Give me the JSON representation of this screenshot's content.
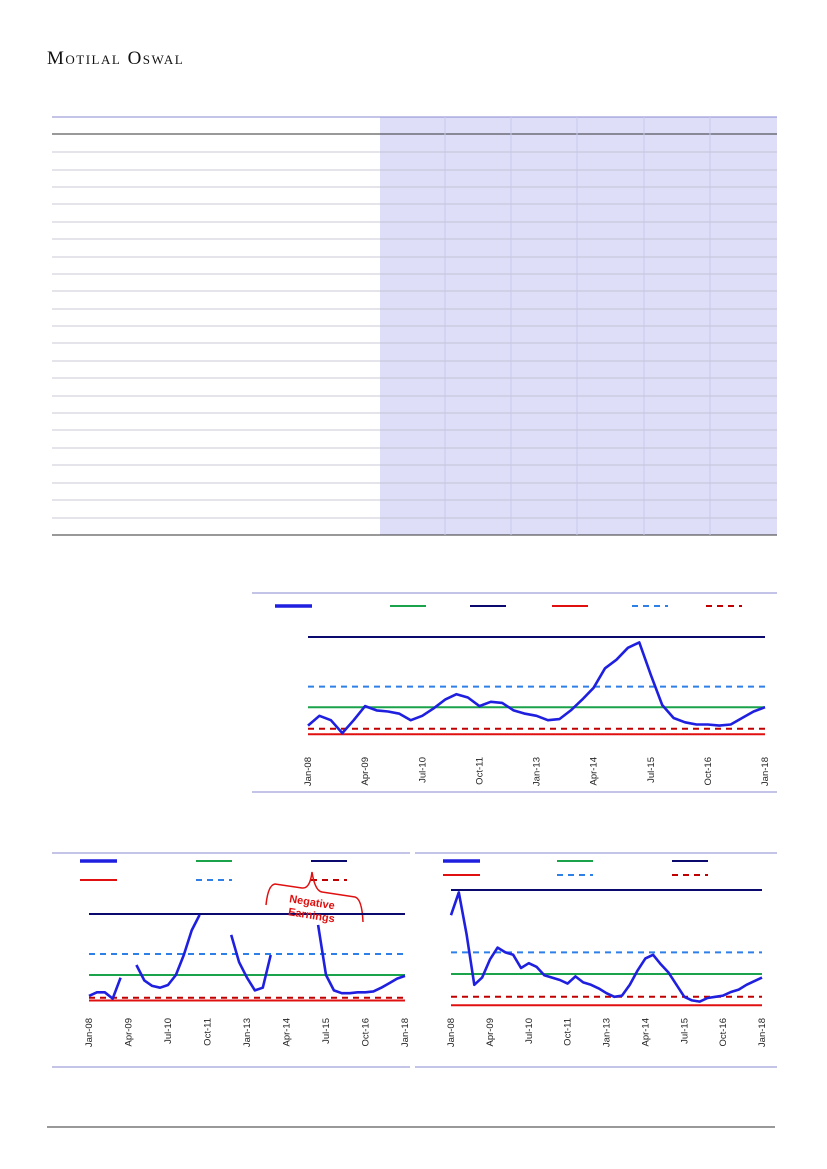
{
  "header": {
    "brand": "Motilal Oswal"
  },
  "chart_data": [
    {
      "type": "line",
      "x": [
        "Jan-08",
        "Apr-08",
        "Jul-08",
        "Oct-08",
        "Jan-09",
        "Apr-09",
        "Jul-09",
        "Oct-09",
        "Jan-10",
        "Apr-10",
        "Jul-10",
        "Oct-10",
        "Jan-11",
        "Apr-11",
        "Jul-11",
        "Oct-11",
        "Jan-12",
        "Apr-12",
        "Jul-12",
        "Oct-12",
        "Jan-13",
        "Apr-13",
        "Jul-13",
        "Oct-13",
        "Jan-14",
        "Apr-14",
        "Jul-14",
        "Oct-14",
        "Jan-15",
        "Apr-15",
        "Jul-15",
        "Oct-15",
        "Jan-16",
        "Apr-16",
        "Jul-16",
        "Oct-16",
        "Jan-17",
        "Apr-17",
        "Jul-17",
        "Oct-17",
        "Jan-18"
      ],
      "xticks": [
        "Jan-08",
        "Apr-09",
        "Jul-10",
        "Oct-11",
        "Jan-13",
        "Apr-14",
        "Jul-15",
        "Oct-16",
        "Jan-18"
      ],
      "ylim": [
        0,
        100
      ],
      "series": [
        {
          "color": "#1f1fe0",
          "values": [
            18,
            27,
            23,
            11,
            23,
            36,
            32,
            31,
            29,
            23,
            27,
            34,
            42,
            47,
            44,
            36,
            40,
            39,
            32,
            29,
            27,
            23,
            24,
            32,
            42,
            53,
            71,
            79,
            90,
            95,
            65,
            37,
            25,
            21,
            19,
            19,
            18,
            19,
            25,
            31,
            35
          ]
        }
      ],
      "ref_lines": [
        {
          "value": 100,
          "color": "#0a0a6e",
          "dash": false
        },
        {
          "value": 54,
          "color": "#2e7fe6",
          "dash": true
        },
        {
          "value": 35,
          "color": "#1aa34a",
          "dash": false
        },
        {
          "value": 15,
          "color": "#c00000",
          "dash": true
        },
        {
          "value": 10,
          "color": "#e01010",
          "dash": false
        }
      ]
    },
    {
      "type": "line",
      "x": [
        "Jan-08",
        "Apr-08",
        "Jul-08",
        "Oct-08",
        "Jan-09",
        "Apr-09",
        "Jul-09",
        "Oct-09",
        "Jan-10",
        "Apr-10",
        "Jul-10",
        "Oct-10",
        "Jan-11",
        "Apr-11",
        "Jul-11",
        "Oct-11",
        "Jan-12",
        "Apr-12",
        "Jul-12",
        "Oct-12",
        "Jan-13",
        "Apr-13",
        "Jul-13",
        "Oct-13",
        "Jan-14",
        "Apr-14",
        "Jul-14",
        "Oct-14",
        "Jan-15",
        "Apr-15",
        "Jul-15",
        "Oct-15",
        "Jan-16",
        "Apr-16",
        "Jul-16",
        "Oct-16",
        "Jan-17",
        "Apr-17",
        "Jul-17",
        "Oct-17",
        "Jan-18"
      ],
      "xticks": [
        "Jan-08",
        "Apr-09",
        "Jul-10",
        "Oct-11",
        "Jan-13",
        "Apr-14",
        "Jul-15",
        "Oct-16",
        "Jan-18"
      ],
      "ylim": [
        0,
        100
      ],
      "series": [
        {
          "color": "#1f1fe0",
          "values": [
            10,
            14,
            14,
            7,
            30,
            null,
            44,
            27,
            21,
            19,
            22,
            33,
            55,
            82,
            99,
            null,
            null,
            null,
            77,
            47,
            30,
            16,
            19,
            55,
            null,
            null,
            null,
            null,
            null,
            88,
            33,
            16,
            13,
            13,
            14,
            14,
            15,
            19,
            24,
            29,
            32
          ]
        }
      ],
      "ref_lines": [
        {
          "value": 100,
          "color": "#0a0a6e",
          "dash": false
        },
        {
          "value": 56,
          "color": "#2e7fe6",
          "dash": true
        },
        {
          "value": 33,
          "color": "#1aa34a",
          "dash": false
        },
        {
          "value": 8,
          "color": "#c00000",
          "dash": true
        },
        {
          "value": 5,
          "color": "#e01010",
          "dash": false
        }
      ],
      "annotation": "Negative Earnings"
    },
    {
      "type": "line",
      "x": [
        "Jan-08",
        "Apr-08",
        "Jul-08",
        "Oct-08",
        "Jan-09",
        "Apr-09",
        "Jul-09",
        "Oct-09",
        "Jan-10",
        "Apr-10",
        "Jul-10",
        "Oct-10",
        "Jan-11",
        "Apr-11",
        "Jul-11",
        "Oct-11",
        "Jan-12",
        "Apr-12",
        "Jul-12",
        "Oct-12",
        "Jan-13",
        "Apr-13",
        "Jul-13",
        "Oct-13",
        "Jan-14",
        "Apr-14",
        "Jul-14",
        "Oct-14",
        "Jan-15",
        "Apr-15",
        "Jul-15",
        "Oct-15",
        "Jan-16",
        "Apr-16",
        "Jul-16",
        "Oct-16",
        "Jan-17",
        "Apr-17",
        "Jul-17",
        "Oct-17",
        "Jan-18"
      ],
      "xticks": [
        "Jan-08",
        "Apr-09",
        "Jul-10",
        "Oct-11",
        "Jan-13",
        "Apr-14",
        "Jul-15",
        "Oct-16",
        "Jan-18"
      ],
      "ylim": [
        0,
        100
      ],
      "series": [
        {
          "color": "#1f1fe0",
          "values": [
            79,
            98,
            63,
            21,
            27,
            42,
            52,
            48,
            46,
            35,
            39,
            36,
            29,
            27,
            25,
            22,
            28,
            23,
            21,
            18,
            14,
            11,
            12,
            21,
            33,
            43,
            46,
            38,
            31,
            21,
            11,
            8,
            7,
            10,
            11,
            12,
            15,
            17,
            21,
            24,
            27
          ]
        }
      ],
      "ref_lines": [
        {
          "value": 100,
          "color": "#0a0a6e",
          "dash": false
        },
        {
          "value": 48,
          "color": "#2e7fe6",
          "dash": true
        },
        {
          "value": 30,
          "color": "#1aa34a",
          "dash": false
        },
        {
          "value": 11,
          "color": "#c00000",
          "dash": true
        },
        {
          "value": 4,
          "color": "#e01010",
          "dash": false
        }
      ]
    }
  ]
}
